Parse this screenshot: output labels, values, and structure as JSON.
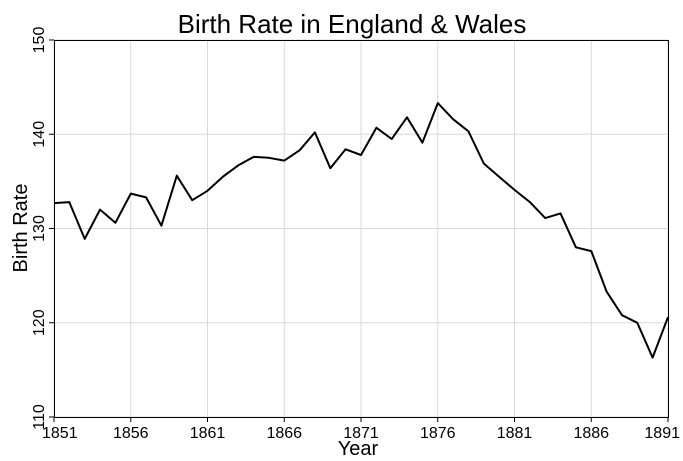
{
  "chart_data": {
    "type": "line",
    "title": "Birth Rate in England & Wales",
    "xlabel": "Year",
    "ylabel": "Birth Rate",
    "xlim": [
      1851,
      1891
    ],
    "ylim": [
      110,
      150
    ],
    "x_ticks": [
      1851,
      1856,
      1861,
      1866,
      1871,
      1876,
      1881,
      1886,
      1891
    ],
    "y_ticks": [
      110,
      120,
      130,
      140,
      150
    ],
    "grid": true,
    "legend": false,
    "series": [
      {
        "color": "#000000",
        "x": [
          1851,
          1852,
          1853,
          1854,
          1855,
          1856,
          1857,
          1858,
          1859,
          1860,
          1861,
          1862,
          1863,
          1864,
          1865,
          1866,
          1867,
          1868,
          1869,
          1870,
          1871,
          1872,
          1873,
          1874,
          1875,
          1876,
          1877,
          1878,
          1879,
          1880,
          1881,
          1882,
          1883,
          1884,
          1885,
          1886,
          1887,
          1888,
          1889,
          1890,
          1891
        ],
        "values": [
          132.7,
          132.8,
          128.9,
          132.0,
          130.6,
          133.7,
          133.3,
          130.3,
          135.6,
          133.0,
          134.0,
          135.5,
          136.7,
          137.6,
          137.5,
          137.2,
          138.3,
          140.2,
          136.4,
          138.4,
          137.8,
          140.7,
          139.5,
          141.8,
          139.1,
          143.3,
          141.6,
          140.3,
          136.9,
          135.5,
          134.1,
          132.8,
          131.1,
          131.6,
          128.0,
          127.6,
          123.3,
          120.8,
          120.0,
          116.3,
          120.6
        ]
      }
    ]
  }
}
